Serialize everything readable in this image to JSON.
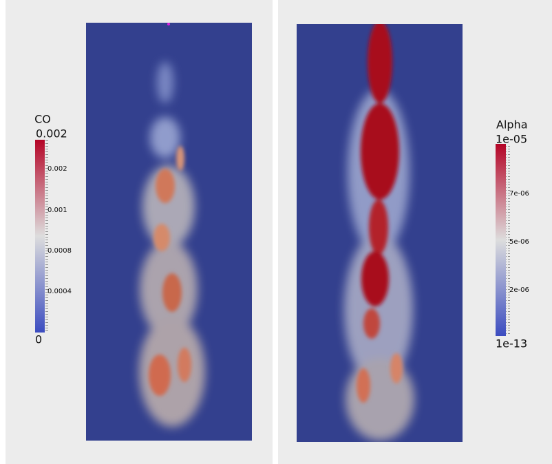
{
  "left_panel": {
    "colorbar": {
      "title": "CO",
      "max_label": "0.002",
      "min_label": "0",
      "tick_labels": [
        "0.002",
        "0.001",
        "0.0008",
        "0.0004"
      ]
    }
  },
  "right_panel": {
    "colorbar": {
      "title": "Alpha",
      "max_label": "1e-05",
      "min_label": "1e-13",
      "tick_labels": [
        "7e-06",
        "5e-06",
        "2e-06"
      ]
    }
  }
}
